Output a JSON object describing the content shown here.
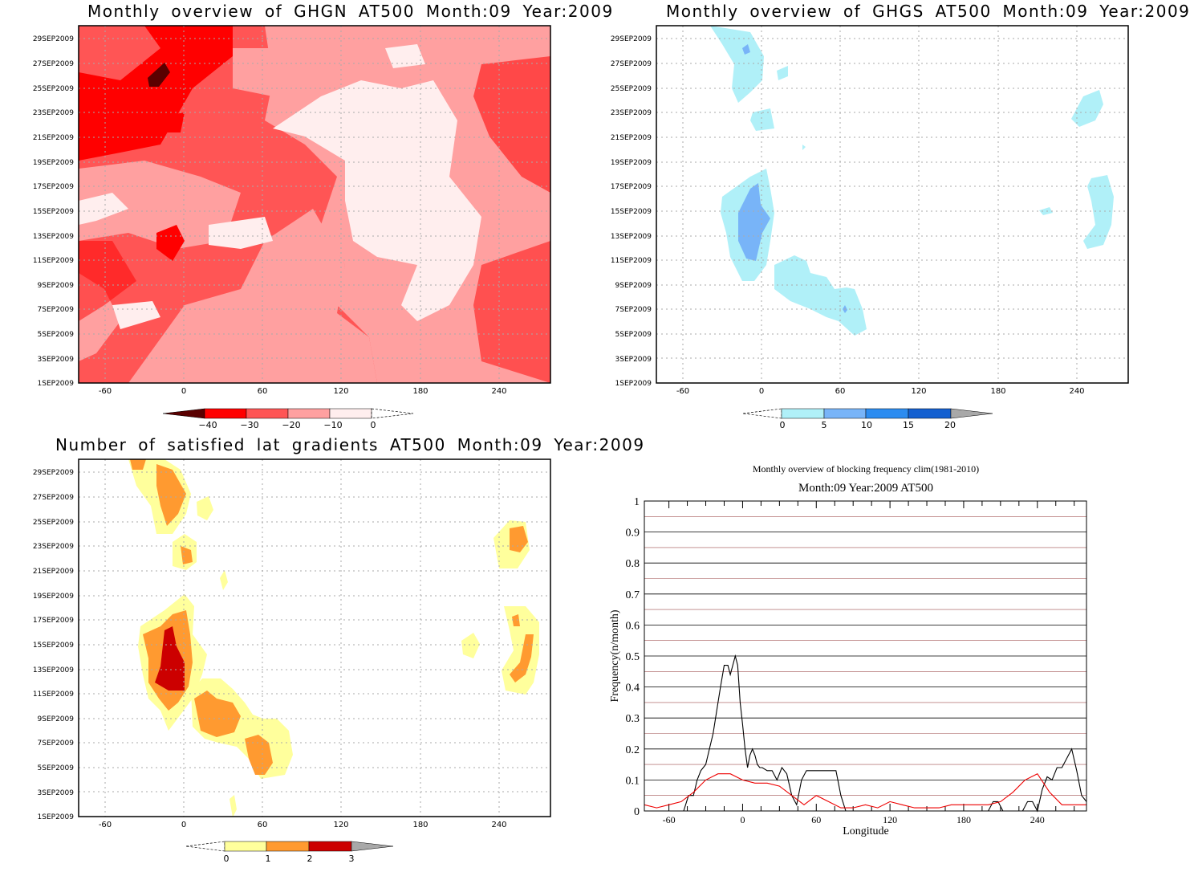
{
  "panels": {
    "ghgn": {
      "title": "Monthly overview of GHGN AT500 Month:09 Year:2009",
      "colorbar": {
        "labels": [
          "−40",
          "−30",
          "−20",
          "−10",
          "0"
        ],
        "colors": [
          "#5a0000",
          "#ff0000",
          "#ff5555",
          "#ffa0a0",
          "#ffeeee"
        ]
      }
    },
    "ghgs": {
      "title": "Monthly overview of GHGS AT500 Month:09 Year:2009",
      "colorbar": {
        "labels": [
          "0",
          "5",
          "10",
          "15",
          "20"
        ],
        "colors": [
          "#b0f0f8",
          "#78b4f8",
          "#2c8cf0",
          "#1460d0",
          "#a8a8a8"
        ]
      }
    },
    "lat": {
      "title": "Number of satisfied lat gradients AT500 Month:09 Year:2009",
      "colorbar": {
        "labels": [
          "0",
          "1",
          "2",
          "3"
        ],
        "colors": [
          "#ffff9c",
          "#ff9a30",
          "#cc0000",
          "#a8a8a8"
        ]
      }
    },
    "freq": {
      "title": "Monthly overview of blocking frequency clim(1981-2010)",
      "subtitle": "Month:09 Year:2009  AT500"
    }
  },
  "axes": {
    "date_ticks": [
      "1SEP2009",
      "3SEP2009",
      "5SEP2009",
      "7SEP2009",
      "9SEP2009",
      "11SEP2009",
      "13SEP2009",
      "15SEP2009",
      "17SEP2009",
      "19SEP2009",
      "21SEP2009",
      "23SEP2009",
      "25SEP2009",
      "27SEP2009",
      "29SEP2009"
    ],
    "lon_ticks": [
      "-60",
      "0",
      "60",
      "120",
      "180",
      "240"
    ]
  },
  "chart_data": [
    {
      "type": "heatmap",
      "title": "Monthly overview of GHGN AT500 Month:09 Year:2009",
      "x_range": [
        -80,
        280
      ],
      "y_range": [
        "1SEP2009",
        "30SEP2009"
      ],
      "levels": [
        -40,
        -30,
        -20,
        -10,
        0
      ],
      "grid": true
    },
    {
      "type": "heatmap",
      "title": "Monthly overview of GHGS AT500 Month:09 Year:2009",
      "x_range": [
        -80,
        280
      ],
      "y_range": [
        "1SEP2009",
        "30SEP2009"
      ],
      "levels": [
        0,
        5,
        10,
        15,
        20
      ],
      "grid": true
    },
    {
      "type": "heatmap",
      "title": "Number of satisfied lat gradients AT500 Month:09 Year:2009",
      "x_range": [
        -80,
        280
      ],
      "y_range": [
        "1SEP2009",
        "30SEP2009"
      ],
      "levels": [
        0,
        1,
        2,
        3
      ],
      "grid": true
    },
    {
      "type": "line",
      "title": "Monthly overview of blocking frequency clim(1981-2010)",
      "subtitle": "Month:09 Year:2009  AT500",
      "xlabel": "Longitude",
      "ylabel": "Frequency(n/month)",
      "xlim": [
        -80,
        280
      ],
      "ylim": [
        0,
        1
      ],
      "yticks": [
        "0",
        "0.1",
        "0.2",
        "0.3",
        "0.4",
        "0.5",
        "0.6",
        "0.7",
        "0.8",
        "0.9",
        "1"
      ],
      "xticks": [
        "-60",
        "0",
        "60",
        "120",
        "180",
        "240"
      ],
      "series": [
        {
          "color": "#000000",
          "x": [
            -80,
            -48,
            -44,
            -40,
            -37,
            -34,
            -30,
            -27,
            -24,
            -20,
            -18,
            -15,
            -12,
            -10,
            -8,
            -6,
            -4,
            -2,
            0,
            2,
            4,
            6,
            8,
            10,
            12,
            14,
            16,
            20,
            24,
            28,
            32,
            36,
            40,
            44,
            48,
            52,
            56,
            60,
            64,
            70,
            76,
            80,
            84,
            88,
            200,
            204,
            208,
            212,
            220,
            228,
            232,
            236,
            240,
            244,
            248,
            252,
            256,
            260,
            264,
            268,
            272,
            276,
            280
          ],
          "y": [
            0,
            0,
            0.05,
            0.05,
            0.1,
            0.13,
            0.15,
            0.2,
            0.25,
            0.35,
            0.4,
            0.47,
            0.47,
            0.44,
            0.47,
            0.5,
            0.47,
            0.35,
            0.28,
            0.2,
            0.14,
            0.18,
            0.2,
            0.18,
            0.15,
            0.14,
            0.14,
            0.13,
            0.13,
            0.1,
            0.14,
            0.12,
            0.05,
            0.02,
            0.1,
            0.13,
            0.13,
            0.13,
            0.13,
            0.13,
            0.13,
            0.05,
            0,
            0,
            0,
            0.03,
            0.03,
            0,
            0,
            0,
            0.03,
            0.03,
            0,
            0.07,
            0.11,
            0.1,
            0.14,
            0.14,
            0.17,
            0.2,
            0.13,
            0.05,
            0.03
          ]
        },
        {
          "color": "#ee0000",
          "x": [
            -80,
            -70,
            -60,
            -50,
            -40,
            -30,
            -20,
            -10,
            0,
            10,
            20,
            30,
            40,
            50,
            60,
            70,
            80,
            90,
            100,
            110,
            120,
            130,
            140,
            150,
            160,
            170,
            180,
            190,
            200,
            210,
            220,
            230,
            240,
            250,
            260,
            270,
            280
          ],
          "y": [
            0.02,
            0.01,
            0.02,
            0.03,
            0.06,
            0.1,
            0.12,
            0.12,
            0.1,
            0.09,
            0.09,
            0.08,
            0.05,
            0.02,
            0.05,
            0.03,
            0.01,
            0.01,
            0.02,
            0.01,
            0.03,
            0.02,
            0.01,
            0.01,
            0.01,
            0.02,
            0.02,
            0.02,
            0.02,
            0.03,
            0.06,
            0.1,
            0.12,
            0.06,
            0.02,
            0.02,
            0.02
          ]
        }
      ]
    }
  ]
}
